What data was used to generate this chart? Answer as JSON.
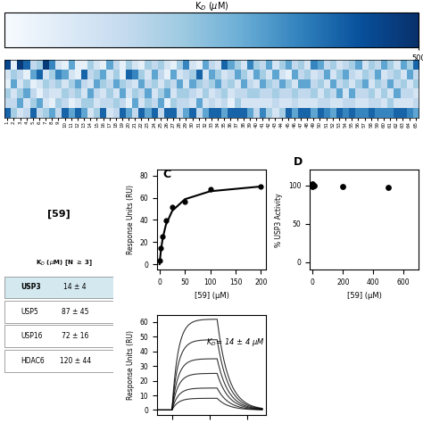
{
  "title": "K$_D$ (μM)",
  "colorbar_label": "K$_D$ (μM)",
  "colorbar_ticks": [
    500
  ],
  "vmin": 0,
  "vmax": 500,
  "n_rows": 6,
  "n_cols": 65,
  "cmap_colors": [
    "#08306b",
    "#2171b5",
    "#6baed6",
    "#c6dbef",
    "#deebf7",
    "#f7fbff"
  ],
  "background_color": "#ffffff",
  "tick_fontsize": 4.5,
  "heatmap_data": [
    [
      450,
      50,
      480,
      400,
      150,
      200,
      480,
      350,
      100,
      50,
      300,
      50,
      50,
      200,
      100,
      50,
      300,
      150,
      50,
      200,
      100,
      50,
      200,
      150,
      200,
      100,
      50,
      200,
      350,
      100,
      50,
      300,
      150,
      100,
      400,
      300,
      200,
      100,
      350,
      200,
      150,
      300,
      100,
      200,
      300,
      150,
      200,
      100,
      350,
      300,
      150,
      200,
      100,
      150,
      200,
      300,
      100,
      200,
      150,
      300,
      200,
      100,
      300,
      200,
      400
    ],
    [
      100,
      200,
      150,
      50,
      300,
      400,
      100,
      200,
      350,
      300,
      100,
      50,
      400,
      150,
      200,
      300,
      100,
      200,
      50,
      400,
      350,
      200,
      100,
      300,
      150,
      50,
      300,
      100,
      150,
      200,
      400,
      100,
      300,
      200,
      100,
      150,
      300,
      200,
      100,
      300,
      200,
      100,
      300,
      100,
      50,
      300,
      150,
      200,
      100,
      150,
      300,
      100,
      200,
      300,
      150,
      100,
      200,
      150,
      300,
      100,
      150,
      200,
      100,
      300,
      150
    ],
    [
      50,
      300,
      100,
      200,
      50,
      100,
      200,
      150,
      200,
      100,
      200,
      300,
      150,
      100,
      300,
      200,
      150,
      300,
      200,
      150,
      100,
      300,
      150,
      200,
      100,
      200,
      150,
      300,
      100,
      300,
      200,
      150,
      200,
      300,
      150,
      200,
      100,
      300,
      150,
      100,
      300,
      200,
      150,
      300,
      200,
      100,
      300,
      300,
      150,
      200,
      100,
      300,
      150,
      200,
      100,
      200,
      300,
      100,
      200,
      150,
      300,
      150,
      200,
      100,
      200
    ],
    [
      200,
      100,
      200,
      300,
      150,
      50,
      150,
      100,
      100,
      200,
      150,
      200,
      100,
      300,
      150,
      100,
      200,
      100,
      300,
      100,
      200,
      150,
      300,
      100,
      200,
      300,
      100,
      200,
      200,
      150,
      100,
      200,
      100,
      150,
      200,
      100,
      150,
      150,
      200,
      200,
      150,
      150,
      200,
      150,
      150,
      200,
      150,
      150,
      200,
      100,
      200,
      150,
      300,
      100,
      300,
      150,
      150,
      200,
      100,
      200,
      100,
      300,
      150,
      150,
      100
    ],
    [
      150,
      150,
      300,
      100,
      200,
      300,
      100,
      50,
      200,
      150,
      50,
      100,
      200,
      200,
      100,
      150,
      150,
      200,
      150,
      50,
      300,
      100,
      200,
      150,
      300,
      50,
      200,
      150,
      150,
      100,
      300,
      100,
      150,
      100,
      150,
      50,
      200,
      100,
      100,
      100,
      100,
      100,
      150,
      100,
      100,
      150,
      100,
      100,
      100,
      150,
      150,
      100,
      100,
      150,
      150,
      100,
      100,
      150,
      150,
      100,
      200,
      100,
      100,
      100,
      150
    ],
    [
      400,
      200,
      100,
      150,
      400,
      150,
      200,
      300,
      150,
      400,
      300,
      400,
      300,
      100,
      200,
      400,
      100,
      150,
      400,
      300,
      150,
      400,
      300,
      400,
      150,
      400,
      400,
      150,
      300,
      400,
      150,
      300,
      400,
      400,
      300,
      400,
      400,
      400,
      300,
      150,
      350,
      200,
      100,
      200,
      400,
      300,
      400,
      400,
      300,
      400,
      350,
      300,
      400,
      350,
      400,
      350,
      350,
      400,
      350,
      350,
      350,
      400,
      400,
      350,
      300
    ]
  ],
  "xtick_labels": [
    "1",
    "2",
    "3",
    "4",
    "5",
    "6",
    "7",
    "8",
    "9",
    "10",
    "11",
    "12",
    "13",
    "14",
    "15",
    "16",
    "17",
    "18",
    "19",
    "20",
    "21",
    "22",
    "23",
    "24",
    "25",
    "26",
    "27",
    "28",
    "29",
    "30",
    "31",
    "32",
    "33",
    "34",
    "35",
    "36",
    "37",
    "38",
    "39",
    "40",
    "41",
    "42",
    "43",
    "44",
    "45",
    "46",
    "47",
    "48",
    "49",
    "50",
    "51",
    "52",
    "53",
    "54",
    "55",
    "56",
    "57",
    "58",
    "59",
    "60",
    "61",
    "62",
    "63",
    "64",
    "65"
  ],
  "ytick_labels": []
}
